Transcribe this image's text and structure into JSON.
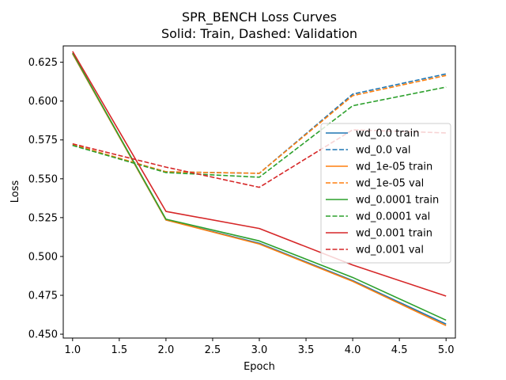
{
  "chart_data": {
    "type": "line",
    "title": "SPR_BENCH Loss Curves",
    "subtitle": "Solid: Train, Dashed: Validation",
    "xlabel": "Epoch",
    "ylabel": "Loss",
    "xlim": [
      0.9,
      5.1
    ],
    "ylim": [
      0.4475,
      0.6355
    ],
    "xticks": [
      1.0,
      1.5,
      2.0,
      2.5,
      3.0,
      3.5,
      4.0,
      4.5,
      5.0
    ],
    "xtick_labels": [
      "1.0",
      "1.5",
      "2.0",
      "2.5",
      "3.0",
      "3.5",
      "4.0",
      "4.5",
      "5.0"
    ],
    "yticks": [
      0.45,
      0.475,
      0.5,
      0.525,
      0.55,
      0.575,
      0.6,
      0.625
    ],
    "ytick_labels": [
      "0.450",
      "0.475",
      "0.500",
      "0.525",
      "0.550",
      "0.575",
      "0.600",
      "0.625"
    ],
    "grid": false,
    "legend_position": "center-right",
    "x": [
      1,
      2,
      3,
      4,
      5
    ],
    "series": [
      {
        "name": "wd_0.0 train",
        "color": "#1f77b4",
        "style": "solid",
        "values": [
          0.6305,
          0.5235,
          0.5085,
          0.4845,
          0.4565
        ]
      },
      {
        "name": "wd_0.0 val",
        "color": "#1f77b4",
        "style": "dashed",
        "values": [
          0.5715,
          0.5545,
          0.5535,
          0.6045,
          0.6175
        ]
      },
      {
        "name": "wd_1e-05 train",
        "color": "#ff7f0e",
        "style": "solid",
        "values": [
          0.6305,
          0.5235,
          0.508,
          0.484,
          0.4555
        ]
      },
      {
        "name": "wd_1e-05 val",
        "color": "#ff7f0e",
        "style": "dashed",
        "values": [
          0.572,
          0.5545,
          0.5535,
          0.6035,
          0.6165
        ]
      },
      {
        "name": "wd_0.0001 train",
        "color": "#2ca02c",
        "style": "solid",
        "values": [
          0.631,
          0.524,
          0.51,
          0.4865,
          0.459
        ]
      },
      {
        "name": "wd_0.0001 val",
        "color": "#2ca02c",
        "style": "dashed",
        "values": [
          0.5715,
          0.554,
          0.551,
          0.597,
          0.609
        ]
      },
      {
        "name": "wd_0.001 train",
        "color": "#d62728",
        "style": "solid",
        "values": [
          0.632,
          0.529,
          0.518,
          0.4945,
          0.4745
        ]
      },
      {
        "name": "wd_0.001 val",
        "color": "#d62728",
        "style": "dashed",
        "values": [
          0.5725,
          0.5575,
          0.5445,
          0.5815,
          0.5795
        ]
      }
    ]
  }
}
